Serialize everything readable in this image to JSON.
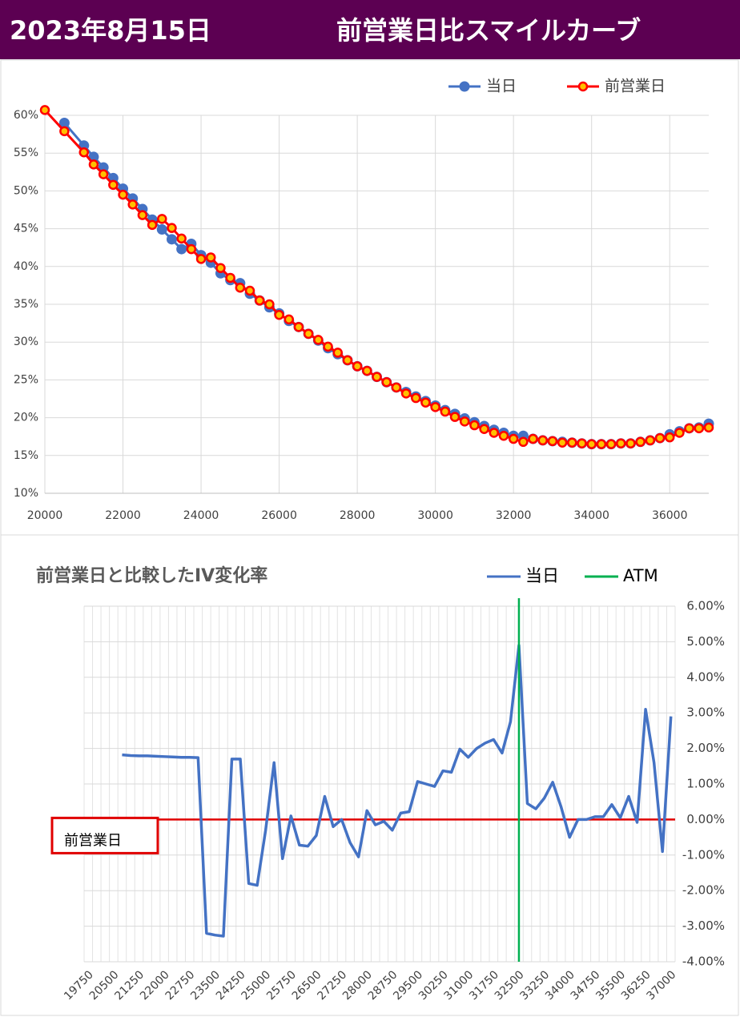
{
  "header": {
    "date": "2023年8月15日",
    "title": "前営業日比スマイルカーブ"
  },
  "chart_data": [
    {
      "type": "line",
      "legend": "top-right",
      "grid": true,
      "xlim": [
        20000,
        37000
      ],
      "xticks": [
        20000,
        22000,
        24000,
        26000,
        28000,
        30000,
        32000,
        34000,
        36000
      ],
      "ylim": [
        10,
        60
      ],
      "yticks": [
        {
          "value": 10,
          "label": "10%"
        },
        {
          "value": 15,
          "label": "15%"
        },
        {
          "value": 20,
          "label": "20%"
        },
        {
          "value": 25,
          "label": "25%"
        },
        {
          "value": 30,
          "label": "30%"
        },
        {
          "value": 35,
          "label": "35%"
        },
        {
          "value": 40,
          "label": "40%"
        },
        {
          "value": 45,
          "label": "45%"
        },
        {
          "value": 50,
          "label": "50%"
        },
        {
          "value": 55,
          "label": "55%"
        },
        {
          "value": 60,
          "label": "60%"
        }
      ],
      "series": [
        {
          "name": "当日",
          "color": "#4472c4",
          "x": [
            20500,
            21000,
            21250,
            21500,
            21750,
            22000,
            22250,
            22500,
            22750,
            23000,
            23250,
            23500,
            23750,
            24000,
            24250,
            24500,
            24750,
            25000,
            25250,
            25500,
            25750,
            26000,
            26250,
            26500,
            26750,
            27000,
            27250,
            27500,
            27750,
            28000,
            28250,
            28500,
            28750,
            29000,
            29250,
            29500,
            29750,
            30000,
            30250,
            30500,
            30750,
            31000,
            31250,
            31500,
            31750,
            32000,
            32250,
            32500,
            32750,
            33000,
            33250,
            33500,
            33750,
            34000,
            34250,
            34500,
            34750,
            35000,
            35250,
            35500,
            35750,
            36000,
            36250,
            36500,
            36750,
            37000
          ],
          "values": [
            59.0,
            56.0,
            54.5,
            53.1,
            51.7,
            50.3,
            49.0,
            47.6,
            46.2,
            44.9,
            43.6,
            42.3,
            43.0,
            41.5,
            40.5,
            39.1,
            38.2,
            37.8,
            36.4,
            35.5,
            34.6,
            33.8,
            32.8,
            32.0,
            31.1,
            30.2,
            29.2,
            28.4,
            27.6,
            26.8,
            26.2,
            25.4,
            24.7,
            24.0,
            23.4,
            22.8,
            22.2,
            21.6,
            21.0,
            20.5,
            19.9,
            19.4,
            18.9,
            18.4,
            18.0,
            17.6,
            17.6,
            17.2,
            17.0,
            16.9,
            16.8,
            16.7,
            16.6,
            16.5,
            16.5,
            16.5,
            16.6,
            16.6,
            16.8,
            17.0,
            17.3,
            17.8,
            18.2,
            18.6,
            18.7,
            19.2
          ]
        },
        {
          "name": "前営業日",
          "color": "#ff0000",
          "x": [
            20000,
            20500,
            21000,
            21250,
            21500,
            21750,
            22000,
            22250,
            22500,
            22750,
            23000,
            23250,
            23500,
            23750,
            24000,
            24250,
            24500,
            24750,
            25000,
            25250,
            25500,
            25750,
            26000,
            26250,
            26500,
            26750,
            27000,
            27250,
            27500,
            27750,
            28000,
            28250,
            28500,
            28750,
            29000,
            29250,
            29500,
            29750,
            30000,
            30250,
            30500,
            30750,
            31000,
            31250,
            31500,
            31750,
            32000,
            32250,
            32500,
            32750,
            33000,
            33250,
            33500,
            33750,
            34000,
            34250,
            34500,
            34750,
            35000,
            35250,
            35500,
            35750,
            36000,
            36250,
            36500,
            36750,
            37000
          ],
          "values": [
            60.7,
            57.9,
            55.1,
            53.5,
            52.2,
            50.8,
            49.5,
            48.2,
            46.8,
            45.5,
            46.3,
            45.1,
            43.7,
            42.3,
            41.0,
            41.2,
            39.8,
            38.5,
            37.2,
            36.8,
            35.5,
            35.0,
            33.6,
            33.0,
            32.0,
            31.1,
            30.3,
            29.4,
            28.6,
            27.6,
            26.8,
            26.2,
            25.4,
            24.7,
            24.0,
            23.2,
            22.6,
            22.0,
            21.4,
            20.8,
            20.1,
            19.5,
            19.0,
            18.5,
            18.0,
            17.6,
            17.2,
            16.8,
            17.2,
            17.0,
            16.9,
            16.7,
            16.7,
            16.6,
            16.5,
            16.5,
            16.5,
            16.6,
            16.6,
            16.8,
            17.0,
            17.3,
            17.4,
            18.0,
            18.6,
            18.6,
            18.7
          ]
        }
      ]
    },
    {
      "type": "line",
      "title": "前営業日と比較したIV変化率",
      "legend": "top-right",
      "grid": true,
      "y_axis_side": "right",
      "categories": [
        "19750",
        null,
        null,
        "20500",
        null,
        null,
        "21250",
        null,
        null,
        "22000",
        null,
        null,
        "22750",
        null,
        null,
        "23500",
        null,
        null,
        "24250",
        null,
        null,
        "25000",
        null,
        null,
        "25750",
        null,
        null,
        "26500",
        null,
        null,
        "27250",
        null,
        null,
        "28000",
        null,
        null,
        "28750",
        null,
        null,
        "29500",
        null,
        null,
        "30250",
        null,
        null,
        "31000",
        null,
        null,
        "31750",
        null,
        null,
        "32500",
        null,
        null,
        "33250",
        null,
        null,
        "34000",
        null,
        null,
        "34750",
        null,
        null,
        "35500",
        null,
        null,
        "36250",
        null,
        null,
        "37000"
      ],
      "ylim": [
        -4,
        6
      ],
      "yticks": [
        {
          "value": -4,
          "label": "-4.00%"
        },
        {
          "value": -3,
          "label": "-3.00%"
        },
        {
          "value": -2,
          "label": "-2.00%"
        },
        {
          "value": -1,
          "label": "-1.00%"
        },
        {
          "value": 0,
          "label": "0.00%"
        },
        {
          "value": 1,
          "label": "1.00%"
        },
        {
          "value": 2,
          "label": "2.00%"
        },
        {
          "value": 3,
          "label": "3.00%"
        },
        {
          "value": 4,
          "label": "4.00%"
        },
        {
          "value": 5,
          "label": "5.00%"
        },
        {
          "value": 6,
          "label": "6.00%"
        }
      ],
      "series": [
        {
          "name": "当日",
          "color": "#4472c4",
          "values": [
            null,
            null,
            null,
            null,
            1.82,
            1.8,
            1.79,
            1.79,
            1.78,
            1.77,
            1.76,
            1.75,
            1.75,
            1.74,
            -3.2,
            -3.25,
            -3.28,
            1.7,
            1.7,
            -1.8,
            -1.85,
            -0.3,
            1.6,
            -1.1,
            0.1,
            -0.72,
            -0.75,
            -0.45,
            0.65,
            -0.2,
            0,
            -0.65,
            -1.05,
            0.25,
            -0.15,
            -0.05,
            -0.3,
            0.18,
            0.22,
            1.07,
            1.0,
            0.93,
            1.37,
            1.33,
            1.98,
            1.75,
            2.0,
            2.15,
            2.25,
            1.87,
            2.75,
            4.9,
            0.45,
            0.3,
            0.6,
            1.05,
            0.35,
            -0.5,
            0,
            0,
            0.08,
            0.08,
            0.42,
            0.05,
            0.65,
            -0.08,
            3.1,
            1.6,
            -0.9,
            2.9
          ]
        },
        {
          "name": "ATM",
          "color": "#00b050",
          "category": "32500"
        }
      ],
      "reference_line": {
        "label": "前営業日",
        "value": 0,
        "color": "#e00000"
      }
    }
  ]
}
